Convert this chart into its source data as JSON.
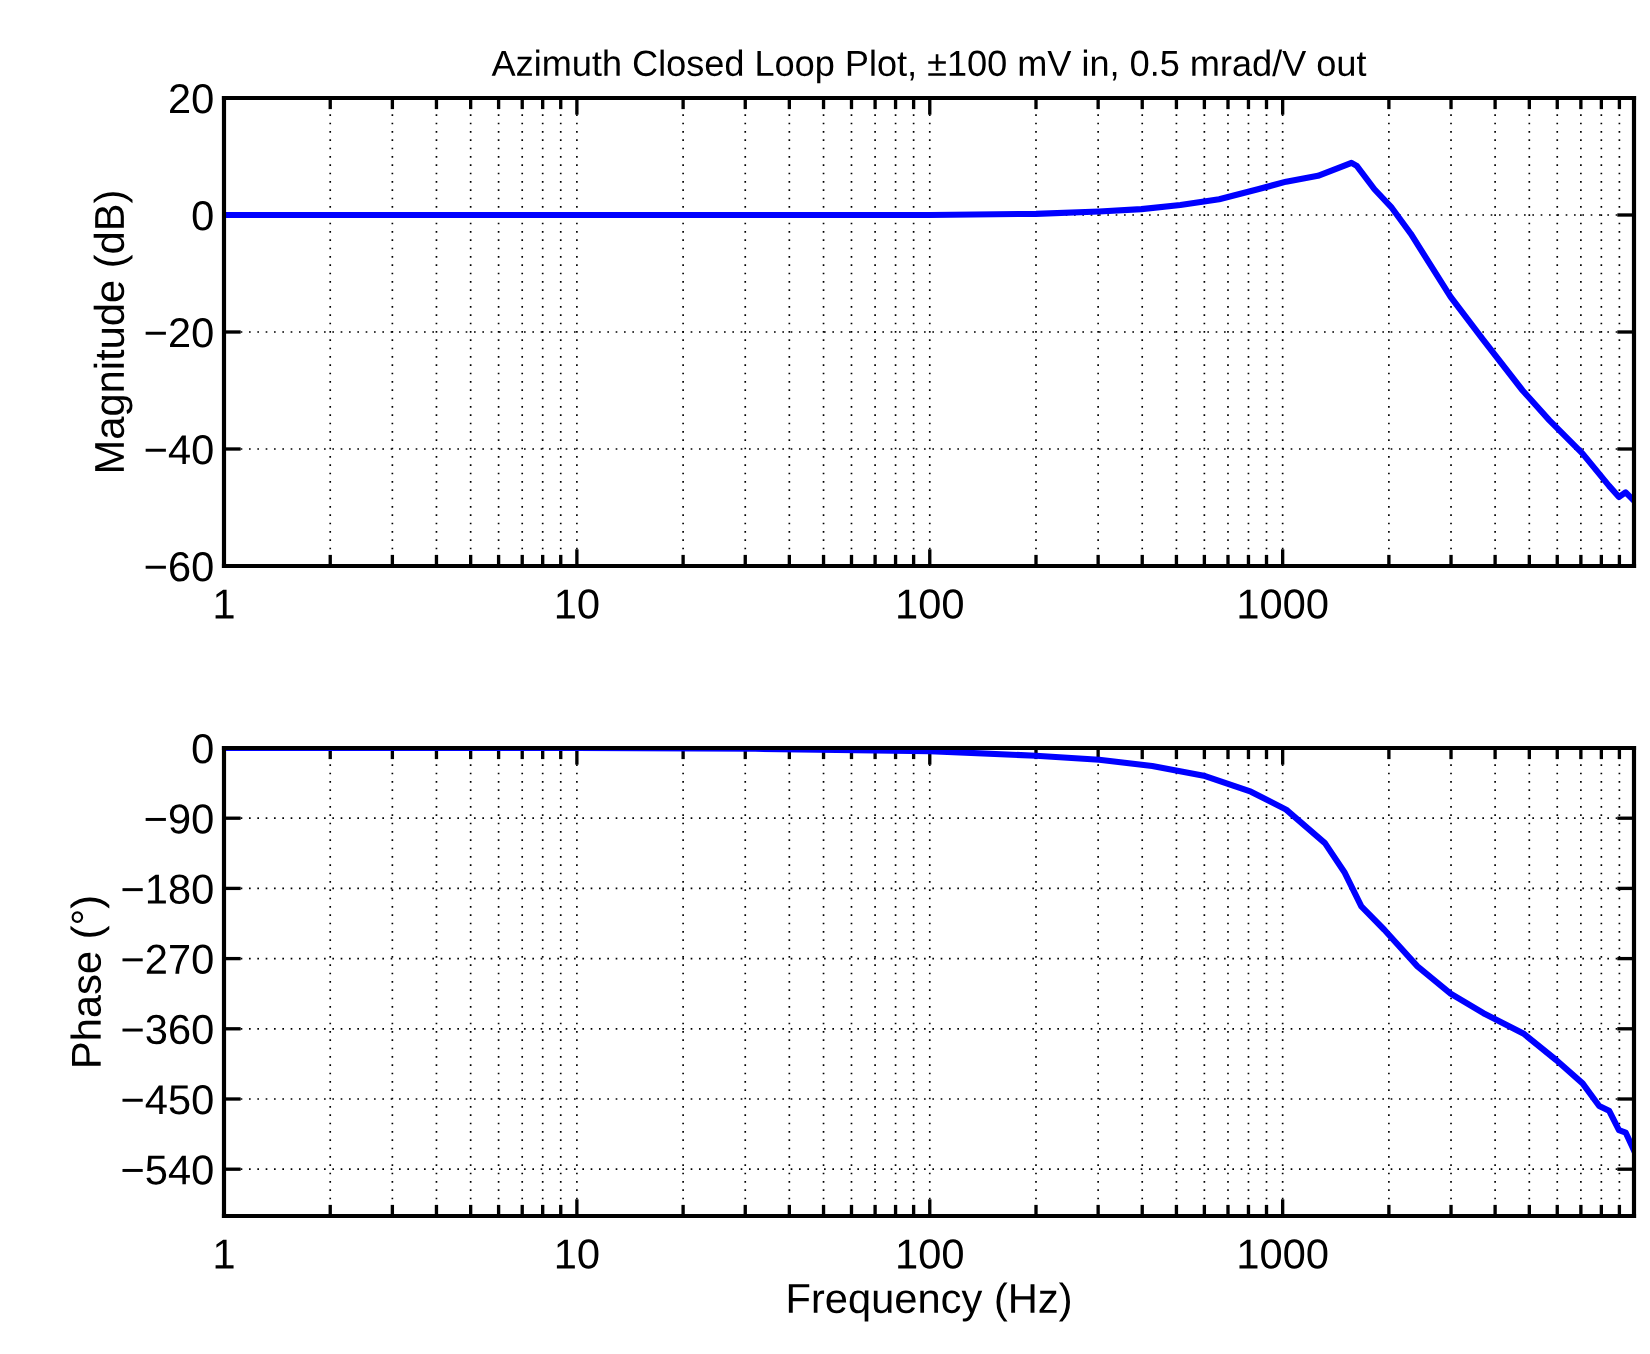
{
  "chart_data": [
    {
      "type": "line",
      "title": "Azimuth Closed Loop Plot, ±100 mV in, 0.5 mrad/V out",
      "ylabel": "Magnitude (dB)",
      "log": "x",
      "grid": true,
      "marker": "none",
      "line_style": "solid",
      "xlim": [
        1,
        9900
      ],
      "xticks": [
        1,
        10,
        100,
        1000
      ],
      "ylim": [
        -60,
        20
      ],
      "yticks": [
        -60,
        -40,
        -20,
        0,
        20
      ],
      "series": [
        {
          "color": "#0000ff",
          "x": [
            1,
            10,
            100,
            200,
            302,
            398,
            513,
            661,
            851,
            1023,
            1259,
            1435,
            1567,
            1622,
            1820,
            2028,
            2307,
            2992,
            3707,
            4786,
            5702,
            7079,
            8414,
            8974,
            9376,
            9772
          ],
          "values": [
            0,
            0,
            0,
            0.2,
            0.6,
            1.0,
            1.7,
            2.7,
            4.4,
            5.7,
            6.7,
            8.0,
            8.9,
            8.4,
            4.4,
            1.4,
            -3.2,
            -14.0,
            -21.4,
            -30.0,
            -35.1,
            -40.8,
            -46.3,
            -48.2,
            -47.4,
            -48.5
          ]
        }
      ]
    },
    {
      "type": "line",
      "xlabel": "Frequency (Hz)",
      "ylabel": "Phase (°)",
      "log": "x",
      "grid": true,
      "marker": "none",
      "line_style": "solid",
      "xlim": [
        1,
        9900
      ],
      "xticks": [
        1,
        10,
        100,
        1000
      ],
      "ylim": [
        -600,
        0
      ],
      "yticks": [
        -540,
        -450,
        -360,
        -270,
        -180,
        -90,
        0
      ],
      "series": [
        {
          "color": "#0000ff",
          "x": [
            1,
            10,
            32,
            100,
            200,
            302,
            427,
            603,
            813,
            1023,
            1318,
            1500,
            1671,
            1941,
            2410,
            2992,
            3707,
            4808,
            5957,
            7079,
            7889,
            8414,
            8974,
            9376,
            9900
          ],
          "values": [
            0,
            0,
            -1,
            -4,
            -10,
            -15,
            -23,
            -36,
            -56,
            -79,
            -122,
            -160,
            -203,
            -233,
            -280,
            -315,
            -340,
            -366,
            -400,
            -430,
            -459,
            -465,
            -490,
            -493,
            -516
          ]
        }
      ]
    }
  ]
}
